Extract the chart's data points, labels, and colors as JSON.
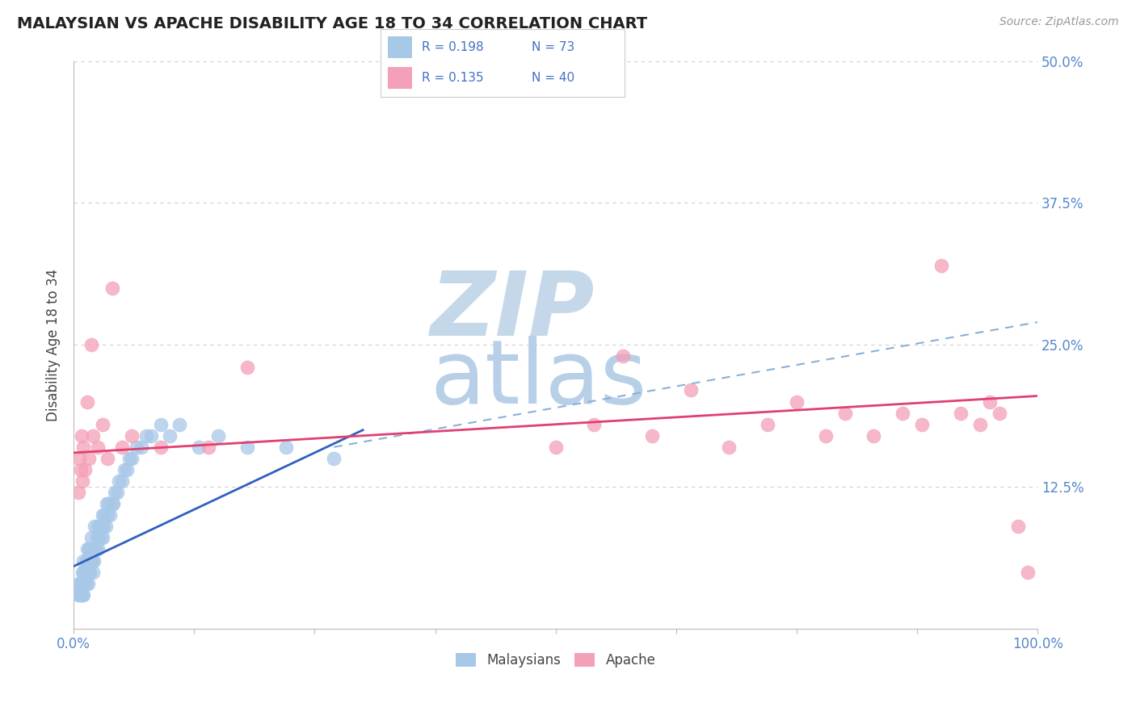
{
  "title": "MALAYSIAN VS APACHE DISABILITY AGE 18 TO 34 CORRELATION CHART",
  "source": "Source: ZipAtlas.com",
  "ylabel": "Disability Age 18 to 34",
  "xlim": [
    0,
    1.0
  ],
  "ylim": [
    0,
    0.5
  ],
  "xticks": [
    0.0,
    0.125,
    0.25,
    0.375,
    0.5,
    0.625,
    0.75,
    0.875,
    1.0
  ],
  "xtick_labels": [
    "0.0%",
    "",
    "",
    "",
    "",
    "",
    "",
    "",
    "100.0%"
  ],
  "yticks": [
    0.0,
    0.125,
    0.25,
    0.375,
    0.5
  ],
  "ytick_labels_right": [
    "",
    "12.5%",
    "25.0%",
    "37.5%",
    "50.0%"
  ],
  "legend_R1": "R = 0.198",
  "legend_N1": "N = 73",
  "legend_R2": "R = 0.135",
  "legend_N2": "N = 40",
  "malaysian_color": "#a8c8e8",
  "apache_color": "#f4a0b8",
  "trend_malaysian_solid_color": "#3060c0",
  "trend_apache_color": "#e04070",
  "trend_dashed_color": "#8ab0d8",
  "background_color": "#ffffff",
  "grid_color": "#d0d0d0",
  "watermark_zip_color": "#c5d8ea",
  "watermark_atlas_color": "#b8cfe8",
  "malaysian_x": [
    0.005,
    0.005,
    0.006,
    0.007,
    0.007,
    0.008,
    0.008,
    0.009,
    0.009,
    0.009,
    0.01,
    0.01,
    0.01,
    0.01,
    0.012,
    0.012,
    0.013,
    0.013,
    0.014,
    0.014,
    0.015,
    0.015,
    0.016,
    0.016,
    0.017,
    0.017,
    0.018,
    0.018,
    0.019,
    0.02,
    0.02,
    0.021,
    0.022,
    0.022,
    0.023,
    0.024,
    0.025,
    0.025,
    0.026,
    0.027,
    0.028,
    0.029,
    0.03,
    0.03,
    0.031,
    0.032,
    0.033,
    0.034,
    0.035,
    0.036,
    0.038,
    0.04,
    0.041,
    0.043,
    0.045,
    0.047,
    0.05,
    0.053,
    0.055,
    0.058,
    0.06,
    0.065,
    0.07,
    0.075,
    0.08,
    0.09,
    0.1,
    0.11,
    0.13,
    0.15,
    0.18,
    0.22,
    0.27
  ],
  "malaysian_y": [
    0.03,
    0.04,
    0.03,
    0.03,
    0.04,
    0.03,
    0.04,
    0.03,
    0.04,
    0.05,
    0.03,
    0.04,
    0.05,
    0.06,
    0.04,
    0.05,
    0.04,
    0.06,
    0.05,
    0.07,
    0.04,
    0.06,
    0.05,
    0.07,
    0.05,
    0.07,
    0.06,
    0.08,
    0.06,
    0.05,
    0.07,
    0.06,
    0.07,
    0.09,
    0.07,
    0.08,
    0.07,
    0.09,
    0.08,
    0.09,
    0.08,
    0.09,
    0.08,
    0.1,
    0.09,
    0.1,
    0.09,
    0.11,
    0.1,
    0.11,
    0.1,
    0.11,
    0.11,
    0.12,
    0.12,
    0.13,
    0.13,
    0.14,
    0.14,
    0.15,
    0.15,
    0.16,
    0.16,
    0.17,
    0.17,
    0.18,
    0.17,
    0.18,
    0.16,
    0.17,
    0.16,
    0.16,
    0.15
  ],
  "apache_x": [
    0.005,
    0.006,
    0.007,
    0.008,
    0.009,
    0.01,
    0.012,
    0.014,
    0.016,
    0.018,
    0.02,
    0.025,
    0.03,
    0.035,
    0.04,
    0.05,
    0.06,
    0.09,
    0.14,
    0.18,
    0.5,
    0.54,
    0.57,
    0.6,
    0.64,
    0.68,
    0.72,
    0.75,
    0.78,
    0.8,
    0.83,
    0.86,
    0.88,
    0.9,
    0.92,
    0.94,
    0.95,
    0.96,
    0.98,
    0.99
  ],
  "apache_y": [
    0.12,
    0.15,
    0.14,
    0.17,
    0.13,
    0.16,
    0.14,
    0.2,
    0.15,
    0.25,
    0.17,
    0.16,
    0.18,
    0.15,
    0.3,
    0.16,
    0.17,
    0.16,
    0.16,
    0.23,
    0.16,
    0.18,
    0.24,
    0.17,
    0.21,
    0.16,
    0.18,
    0.2,
    0.17,
    0.19,
    0.17,
    0.19,
    0.18,
    0.32,
    0.19,
    0.18,
    0.2,
    0.19,
    0.09,
    0.05
  ],
  "trend_malaysian_x0": 0.0,
  "trend_malaysian_y0": 0.055,
  "trend_malaysian_x1": 0.3,
  "trend_malaysian_y1": 0.175,
  "trend_apache_x0": 0.0,
  "trend_apache_y0": 0.155,
  "trend_apache_x1": 1.0,
  "trend_apache_y1": 0.205,
  "trend_dashed_x0": 0.27,
  "trend_dashed_y0": 0.16,
  "trend_dashed_x1": 1.0,
  "trend_dashed_y1": 0.27
}
